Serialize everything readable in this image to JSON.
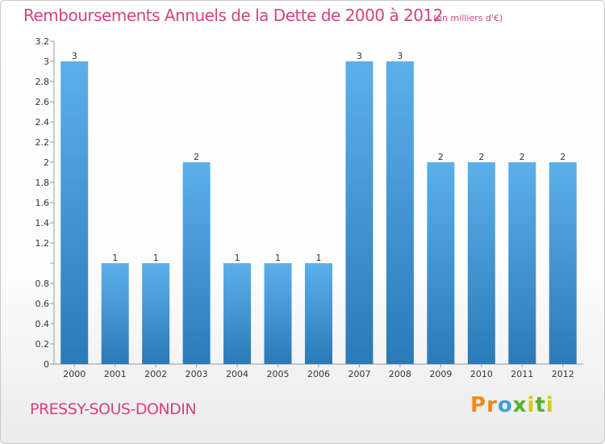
{
  "header": {
    "title": "Remboursements Annuels de la Dette de 2000 à 2012",
    "unit": "(en milliers d'€)"
  },
  "footer": {
    "commune": "PRESSY-SOUS-DONDIN",
    "logo_letters": [
      "P",
      "r",
      "o",
      "x",
      "i",
      "t",
      "i"
    ]
  },
  "colors": {
    "accent": "#d4437f",
    "bar_light": "#5cb0ea",
    "bar_dark": "#2a7ab8",
    "logo": [
      "#f08a1c",
      "#e8891e",
      "#3aa0d8",
      "#5ab02a",
      "#d8c81a",
      "#5ab02a",
      "#d8c81a"
    ]
  },
  "chart_data": {
    "type": "bar",
    "title": "Remboursements Annuels de la Dette de 2000 à 2012",
    "xlabel": "",
    "ylabel": "",
    "categories": [
      "2000",
      "2001",
      "2002",
      "2003",
      "2004",
      "2005",
      "2006",
      "2007",
      "2008",
      "2009",
      "2010",
      "2011",
      "2012"
    ],
    "values": [
      3,
      1,
      1,
      2,
      1,
      1,
      1,
      3,
      3,
      2,
      2,
      2,
      2
    ],
    "data_labels": [
      "3",
      "1",
      "1",
      "2",
      "1",
      "1",
      "1",
      "3",
      "3",
      "2",
      "2",
      "2",
      "2"
    ],
    "ylim": [
      0,
      3.2
    ],
    "yticks": [
      0,
      0.2,
      0.4,
      0.6,
      0.8,
      1,
      1.2,
      1.4,
      1.6,
      1.8,
      2,
      2.2,
      2.4,
      2.6,
      2.8,
      3,
      3.2
    ],
    "ytick_labels": [
      "0",
      "0.2",
      "0.4",
      "0.6",
      "0.8",
      "",
      "1.2",
      "1.4",
      "1.6",
      "1.8",
      "2",
      "2.2",
      "2.4",
      "2.6",
      "2.8",
      "3",
      "3.2"
    ],
    "grid": false,
    "legend": "none"
  }
}
